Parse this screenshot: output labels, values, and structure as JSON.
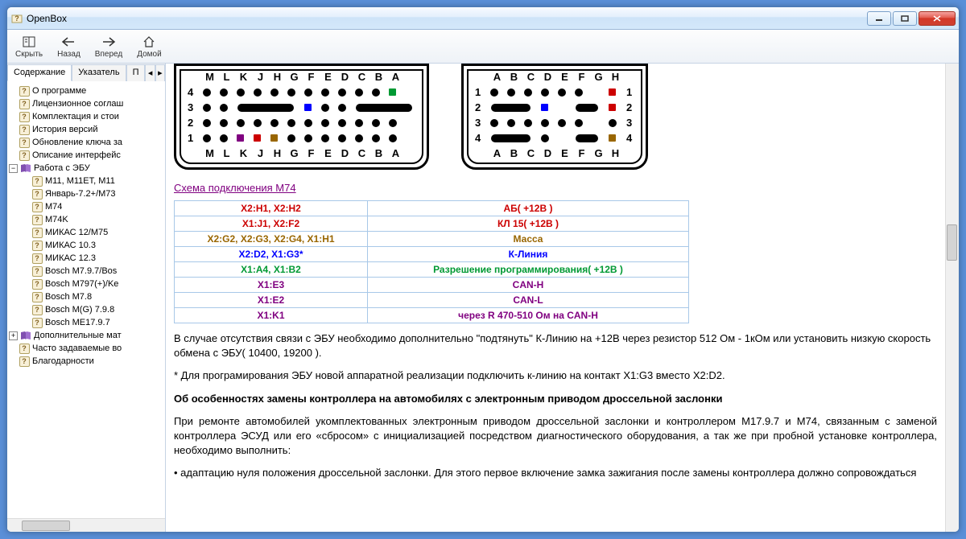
{
  "window": {
    "title": "OpenBox"
  },
  "toolbar": {
    "hide": "Скрыть",
    "back": "Назад",
    "forward": "Вперед",
    "home": "Домой"
  },
  "tabs": {
    "content": "Содержание",
    "index": "Указатель",
    "search_initial": "П"
  },
  "tree": {
    "items_l1_top": [
      "О программе",
      "Лицензионное соглаш",
      "Комплектация и стои",
      "История версий",
      "Обновление ключа за",
      "Описание интерфейс"
    ],
    "ecu_group": "Работа с ЭБУ",
    "ecu_items": [
      "M11, M11ET, M11",
      "Январь-7.2+/M73",
      "M74",
      "M74K",
      "МИКАС 12/M75",
      "МИКАС 10.3",
      "МИКАС 12.3",
      "Bosch M7.9.7/Bos",
      "Bosch M797(+)/Ke",
      "Bosch M7.8",
      "Bosch M(G) 7.9.8",
      "Bosch ME17.9.7"
    ],
    "extra_group": "Дополнительные мат",
    "items_l1_bottom": [
      "Часто задаваемые во",
      "Благодарности"
    ]
  },
  "content": {
    "schema_link": "Схема подключения M74",
    "connector1_labels": [
      "M",
      "L",
      "K",
      "J",
      "H",
      "G",
      "F",
      "E",
      "D",
      "C",
      "B",
      "A"
    ],
    "connector2_labels": [
      "A",
      "B",
      "C",
      "D",
      "E",
      "F",
      "G",
      "H"
    ],
    "con1_rows": {
      "r4": [
        {
          "t": "d"
        },
        {
          "t": "d"
        },
        {
          "t": "d"
        },
        {
          "t": "d"
        },
        {
          "t": "d"
        },
        {
          "t": "d"
        },
        {
          "t": "d"
        },
        {
          "t": "d"
        },
        {
          "t": "d"
        },
        {
          "t": "d"
        },
        {
          "t": "d"
        },
        {
          "t": "sq",
          "c": "#009933"
        }
      ],
      "r3": [
        {
          "t": "d"
        },
        {
          "t": "d"
        },
        {
          "t": "pill",
          "w": 4
        },
        {
          "t": "sq",
          "c": "#0000ff"
        },
        {
          "t": "d"
        },
        {
          "t": "d"
        },
        {
          "t": "pill",
          "w": 4
        }
      ],
      "r2": [
        {
          "t": "d"
        },
        {
          "t": "d"
        },
        {
          "t": "d"
        },
        {
          "t": "d"
        },
        {
          "t": "d"
        },
        {
          "t": "d"
        },
        {
          "t": "d"
        },
        {
          "t": "d"
        },
        {
          "t": "d"
        },
        {
          "t": "d"
        },
        {
          "t": "d"
        },
        {
          "t": "d"
        }
      ],
      "r1": [
        {
          "t": "d"
        },
        {
          "t": "d"
        },
        {
          "t": "sq",
          "c": "#800080"
        },
        {
          "t": "sq",
          "c": "#cc0000"
        },
        {
          "t": "sq",
          "c": "#996600"
        },
        {
          "t": "d"
        },
        {
          "t": "d"
        },
        {
          "t": "d"
        },
        {
          "t": "d"
        },
        {
          "t": "d"
        },
        {
          "t": "d"
        },
        {
          "t": "d"
        }
      ]
    },
    "con2_rows": {
      "r1": [
        {
          "t": "d"
        },
        {
          "t": "d"
        },
        {
          "t": "d"
        },
        {
          "t": "d"
        },
        {
          "t": "d"
        },
        {
          "t": "d"
        },
        {
          "t": "gap"
        },
        {
          "t": "sq",
          "c": "#cc0000"
        }
      ],
      "r2": [
        {
          "t": "pill",
          "w": 3
        },
        {
          "t": "sq",
          "c": "#0000ff"
        },
        {
          "t": "gap"
        },
        {
          "t": "pill",
          "w": 2
        },
        {
          "t": "sq",
          "c": "#cc0000"
        }
      ],
      "r3": [
        {
          "t": "d"
        },
        {
          "t": "d"
        },
        {
          "t": "d"
        },
        {
          "t": "d"
        },
        {
          "t": "d"
        },
        {
          "t": "d"
        },
        {
          "t": "gap"
        },
        {
          "t": "d"
        }
      ],
      "r4": [
        {
          "t": "pill",
          "w": 3
        },
        {
          "t": "d"
        },
        {
          "t": "gap"
        },
        {
          "t": "pill",
          "w": 2
        },
        {
          "t": "sq",
          "c": "#996600"
        }
      ]
    },
    "table_rows": [
      {
        "pins": "X2:H1, X2:H2",
        "desc": "АБ( +12В )",
        "color": "#cc0000"
      },
      {
        "pins": "X1:J1, X2:F2",
        "desc": "КЛ 15( +12В )",
        "color": "#cc0000"
      },
      {
        "pins": "X2:G2, X2:G3, X2:G4, X1:H1",
        "desc": "Масса",
        "color": "#996600"
      },
      {
        "pins": "X2:D2, X1:G3*",
        "desc": "К-Линия",
        "color": "#0000ff"
      },
      {
        "pins": "X1:A4, X1:B2",
        "desc": "Разрешение программирования( +12В )",
        "color": "#009933"
      },
      {
        "pins": "X1:E3",
        "desc": "CAN-H",
        "color": "#800080"
      },
      {
        "pins": "X1:E2",
        "desc": "CAN-L",
        "color": "#800080"
      },
      {
        "pins": "X1:K1",
        "desc": "через R 470-510 Ом на CAN-H",
        "color": "#800080"
      }
    ],
    "para1": "В случае отсутствия связи с ЭБУ необходимо дополнительно \"подтянуть\" К-Линию на +12В через резистор 512 Ом - 1кОм или установить низкую скорость обмена с ЭБУ( 10400, 19200 ).",
    "para2": "* Для програмирования ЭБУ новой аппаратной реализации подключить к-линию на контакт X1:G3 вместо X2:D2.",
    "heading": "Об особенностях замены контроллера на автомобилях с электронным приводом дроссельной заслонки",
    "para3": "При ремонте автомобилей укомплектованных электронным приводом дроссельной заслонки и контроллером M17.9.7 и M74, связанным с заменой контроллера ЭСУД или его «сбросом» с инициализацией посредством диагностического оборудования, а так же при пробной установке контроллера, необходимо выполнить:",
    "bullet1": "• адаптацию нуля положения дроссельной заслонки. Для этого первое включение замка зажигания после замены контроллера должно сопровождаться"
  }
}
